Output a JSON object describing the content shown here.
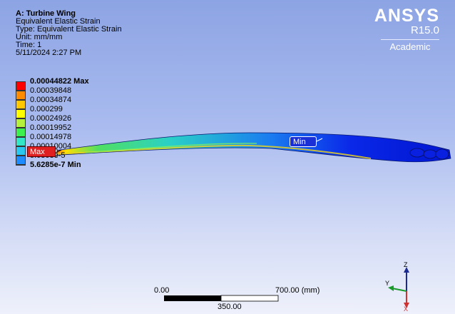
{
  "info": {
    "title": "A: Turbine Wing",
    "lines": [
      "Equivalent Elastic Strain",
      "Type: Equivalent Elastic Strain",
      "Unit: mm/mm",
      "Time: 1",
      "5/11/2024 2:27 PM"
    ]
  },
  "logo": {
    "brand": "ANSYS",
    "version": "R15.0",
    "edition": "Academic"
  },
  "legend": [
    {
      "label": "0.00044822 Max",
      "color": "#ff0000",
      "bold": true
    },
    {
      "label": "0.00039848",
      "color": "#ff8c00",
      "bold": false
    },
    {
      "label": "0.00034874",
      "color": "#ffc800",
      "bold": false
    },
    {
      "label": "0.000299",
      "color": "#ffff00",
      "bold": false
    },
    {
      "label": "0.00024926",
      "color": "#b4f03c",
      "bold": false
    },
    {
      "label": "0.00019952",
      "color": "#3cf050",
      "bold": false
    },
    {
      "label": "0.00014978",
      "color": "#32e6c8",
      "bold": false
    },
    {
      "label": "0.00010004",
      "color": "#28c8f0",
      "bold": false
    },
    {
      "label": "5.0303e-5",
      "color": "#1e8cff",
      "bold": false
    },
    {
      "label": "5.6285e-7 Min",
      "color": "#0000ff",
      "bold": true
    }
  ],
  "markers": {
    "max": "Max",
    "min": "Min"
  },
  "scale_bar": {
    "left": "0.00",
    "middle": "350.00",
    "right": "700.00 (mm)"
  },
  "triad": {
    "z": "Z",
    "y": "Y",
    "x": "X"
  },
  "colors": {
    "accent_max": "#e02020",
    "accent_min": "#1b2fd6"
  }
}
